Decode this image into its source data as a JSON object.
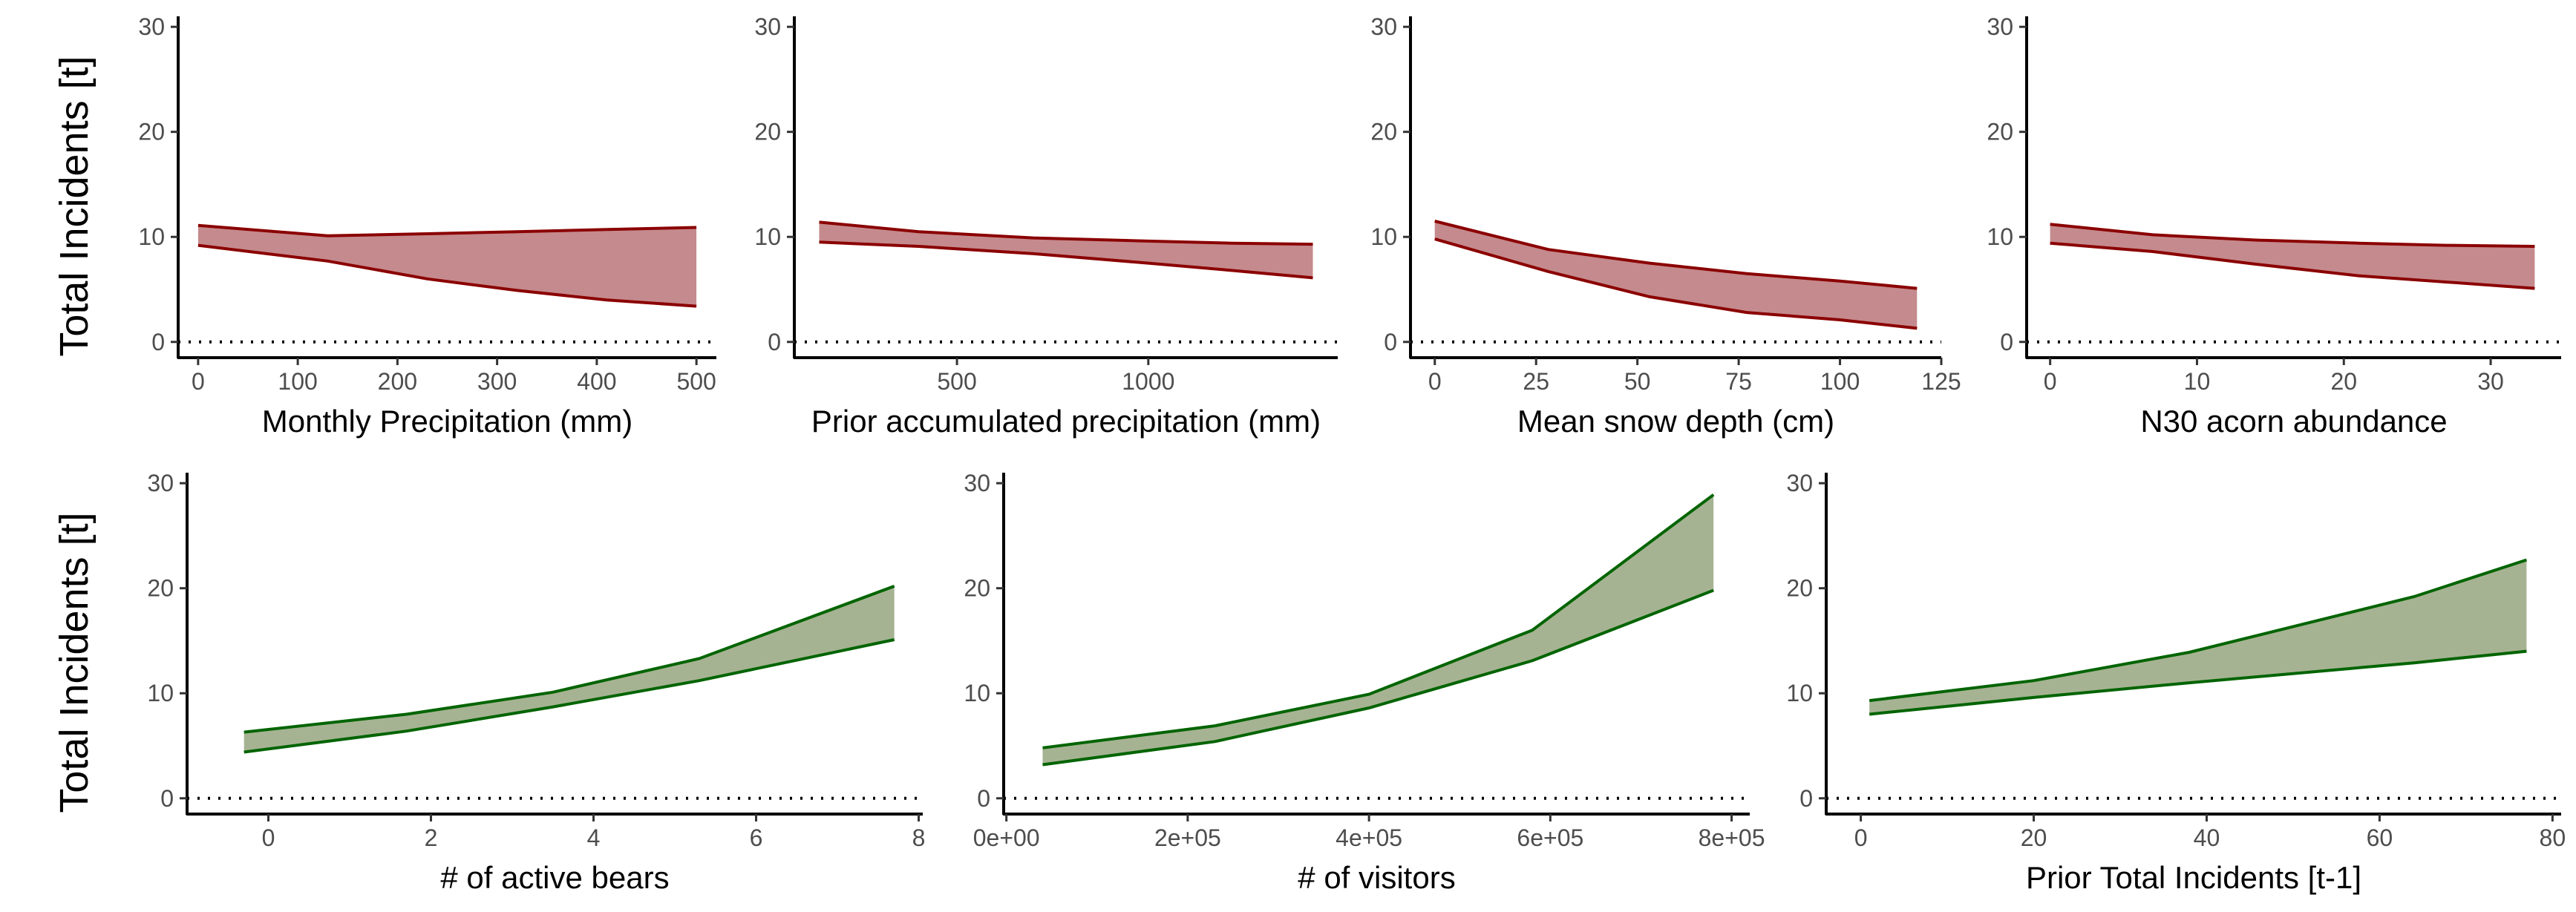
{
  "colors": {
    "negative_fill": "#c48a8d",
    "negative_line": "#8b0000",
    "positive_fill": "#a6b392",
    "positive_line": "#006400"
  },
  "row_titles": [
    "Total Incidents [t]",
    "Total Incidents [t]"
  ],
  "chart_data": [
    {
      "type": "area",
      "xlabel": "Monthly Precipitation (mm)",
      "ylabel": "Total Incidents [t]",
      "xlim": [
        -20,
        520
      ],
      "ylim": [
        -1.5,
        31
      ],
      "x_ticks": [
        0,
        100,
        200,
        300,
        400,
        500
      ],
      "x_tick_labels": [
        "0",
        "100",
        "200",
        "300",
        "400",
        "500"
      ],
      "y_ticks": [
        0,
        10,
        20,
        30
      ],
      "y_tick_labels": [
        "0",
        "10",
        "20",
        "30"
      ],
      "reference_line_y": 0,
      "color_key": "negative",
      "x": [
        0,
        130,
        230,
        320,
        410,
        500
      ],
      "upper": [
        11.1,
        10.1,
        10.3,
        10.5,
        10.7,
        10.9
      ],
      "lower": [
        9.2,
        7.7,
        6.0,
        4.9,
        4.0,
        3.4
      ]
    },
    {
      "type": "area",
      "xlabel": "Prior accumulated precipitation (mm)",
      "ylabel": "Total Incidents [t]",
      "xlim": [
        75,
        1495
      ],
      "ylim": [
        -1.5,
        31
      ],
      "x_ticks": [
        500,
        1000
      ],
      "x_tick_labels": [
        "500",
        "1000"
      ],
      "y_ticks": [
        0,
        10,
        20,
        30
      ],
      "y_tick_labels": [
        "0",
        "10",
        "20",
        "30"
      ],
      "reference_line_y": 0,
      "color_key": "negative",
      "x": [
        140,
        400,
        700,
        1000,
        1220,
        1430
      ],
      "upper": [
        11.4,
        10.5,
        9.9,
        9.6,
        9.4,
        9.3
      ],
      "lower": [
        9.5,
        9.1,
        8.4,
        7.5,
        6.8,
        6.1
      ]
    },
    {
      "type": "area",
      "xlabel": "Mean snow depth (cm)",
      "ylabel": "Total Incidents [t]",
      "xlim": [
        -6,
        125
      ],
      "ylim": [
        -1.5,
        31
      ],
      "x_ticks": [
        0,
        25,
        50,
        75,
        100,
        125
      ],
      "x_tick_labels": [
        "0",
        "25",
        "50",
        "75",
        "100",
        "125"
      ],
      "y_ticks": [
        0,
        10,
        20,
        30
      ],
      "y_tick_labels": [
        "0",
        "10",
        "20",
        "30"
      ],
      "reference_line_y": 0,
      "color_key": "negative",
      "x": [
        0,
        28,
        53,
        77,
        100,
        119
      ],
      "upper": [
        11.5,
        8.8,
        7.5,
        6.5,
        5.8,
        5.1
      ],
      "lower": [
        9.8,
        6.7,
        4.3,
        2.8,
        2.1,
        1.3
      ]
    },
    {
      "type": "area",
      "xlabel": "N30 acorn abundance",
      "ylabel": "Total Incidents [t]",
      "xlim": [
        -1.6,
        34.8
      ],
      "ylim": [
        -1.5,
        31
      ],
      "x_ticks": [
        0,
        10,
        20,
        30
      ],
      "x_tick_labels": [
        "0",
        "10",
        "20",
        "30"
      ],
      "y_ticks": [
        0,
        10,
        20,
        30
      ],
      "y_tick_labels": [
        "0",
        "10",
        "20",
        "30"
      ],
      "reference_line_y": 0,
      "color_key": "negative",
      "x": [
        0,
        7,
        14,
        21,
        27,
        33
      ],
      "upper": [
        11.2,
        10.2,
        9.7,
        9.4,
        9.2,
        9.1
      ],
      "lower": [
        9.4,
        8.6,
        7.4,
        6.3,
        5.7,
        5.1
      ]
    },
    {
      "type": "area",
      "xlabel": "# of active bears",
      "ylabel": "Total Incidents [t]",
      "xlim": [
        -1,
        8.05
      ],
      "ylim": [
        -1.5,
        31
      ],
      "x_ticks": [
        0,
        2,
        4,
        6,
        8
      ],
      "x_tick_labels": [
        "0",
        "2",
        "4",
        "6",
        "8"
      ],
      "y_ticks": [
        0,
        10,
        20,
        30
      ],
      "y_tick_labels": [
        "0",
        "10",
        "20",
        "30"
      ],
      "reference_line_y": 0,
      "color_key": "positive",
      "x": [
        -0.3,
        1.7,
        3.5,
        5.3,
        7.7
      ],
      "upper": [
        6.3,
        8.0,
        10.1,
        13.3,
        20.2
      ],
      "lower": [
        4.4,
        6.4,
        8.7,
        11.2,
        15.1
      ]
    },
    {
      "type": "area",
      "xlabel": "# of visitors",
      "ylabel": "Total Incidents [t]",
      "xlim": [
        -3000,
        820000
      ],
      "ylim": [
        -1.5,
        31
      ],
      "x_ticks": [
        0,
        200000,
        400000,
        600000,
        800000
      ],
      "x_tick_labels": [
        "0e+00",
        "2e+05",
        "4e+05",
        "6e+05",
        "8e+05"
      ],
      "y_ticks": [
        0,
        10,
        20,
        30
      ],
      "y_tick_labels": [
        "0",
        "10",
        "20",
        "30"
      ],
      "reference_line_y": 0,
      "color_key": "positive",
      "x": [
        40000,
        230000,
        400000,
        580000,
        780000
      ],
      "upper": [
        4.8,
        6.9,
        9.9,
        16.0,
        28.9
      ],
      "lower": [
        3.2,
        5.4,
        8.6,
        13.1,
        19.8
      ]
    },
    {
      "type": "area",
      "xlabel": "Prior Total Incidents [t-1]",
      "ylabel": "Total Incidents [t]",
      "xlim": [
        -4,
        81
      ],
      "ylim": [
        -1.5,
        31
      ],
      "x_ticks": [
        0,
        20,
        40,
        60,
        80
      ],
      "x_tick_labels": [
        "0",
        "20",
        "40",
        "60",
        "80"
      ],
      "y_ticks": [
        0,
        10,
        20,
        30
      ],
      "y_tick_labels": [
        "0",
        "10",
        "20",
        "30"
      ],
      "reference_line_y": 0,
      "color_key": "positive",
      "x": [
        1,
        20,
        38,
        64,
        77
      ],
      "upper": [
        9.3,
        11.2,
        13.9,
        19.2,
        22.7
      ],
      "lower": [
        8.0,
        9.6,
        11.0,
        12.9,
        14.0
      ]
    }
  ]
}
